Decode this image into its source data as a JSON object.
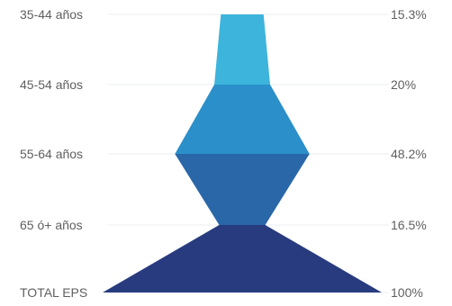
{
  "chart_data": {
    "type": "funnel",
    "categories": [
      "35-44 años",
      "45-54 años",
      "55-64 años",
      "65 ó+ años",
      "TOTAL EPS"
    ],
    "value_labels": [
      "15.3%",
      "20%",
      "48.2%",
      "16.5%",
      "100%"
    ],
    "values": [
      15.3,
      20,
      48.2,
      16.5,
      100
    ],
    "colors": [
      "#3cb4dc",
      "#2b8fc9",
      "#2a67a8",
      "#273b7e",
      "#262a63"
    ],
    "grid": true,
    "gridline_color": "#e9ecef",
    "label_color": "#5f5f5f"
  }
}
